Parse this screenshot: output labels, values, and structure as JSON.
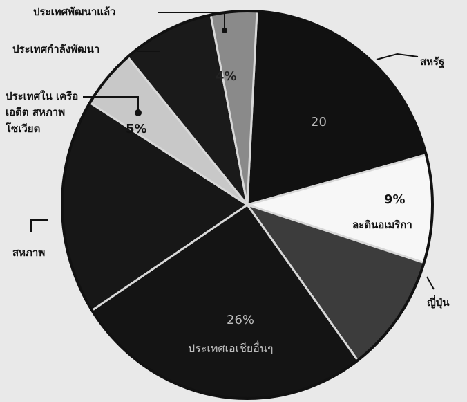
{
  "chart_data": {
    "type": "pie",
    "title": "",
    "slices": [
      {
        "label": "สหรัฐ",
        "value_text": "20",
        "value": 20,
        "color": "#111111"
      },
      {
        "label": "ละตินอเมริกา",
        "value_text": "9%",
        "value": 9,
        "color": "#f7f7f7"
      },
      {
        "label": "ญี่ปุ่น",
        "value_text": "",
        "value": 10,
        "color": "#3c3c3c"
      },
      {
        "label": "ประเทศเอเชียอื่นๆ",
        "value_text": "26%",
        "value": 26,
        "color": "#141414"
      },
      {
        "label": "สหภาพ",
        "value_text": "",
        "value": 18,
        "color": "#171717"
      },
      {
        "label": "ประเทศใน เครือเอดีต สหภาพ โซเวียต",
        "value_text": "5%",
        "value": 5,
        "color": "#c8c8c8"
      },
      {
        "label": "ประเทศกำลังพัฒนา",
        "value_text": "",
        "value": 8,
        "color": "#1a1a1a"
      },
      {
        "label": "ประเทศพัฒนาแล้ว",
        "value_text": "4%",
        "value": 4,
        "color": "#8a8a8a"
      }
    ]
  }
}
